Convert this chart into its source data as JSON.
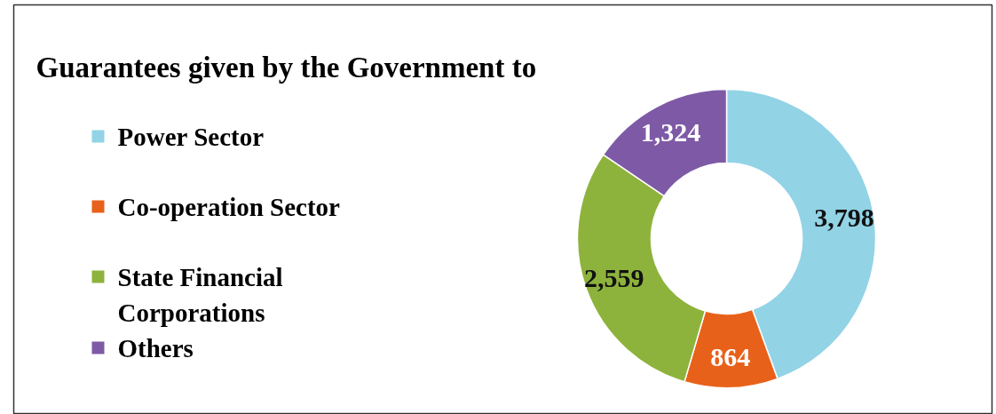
{
  "chart_data": {
    "type": "donut",
    "title": "Guarantees given by the Government to",
    "categories": [
      "Power Sector",
      "Co-operation Sector",
      "State Financial Corporations",
      "Others"
    ],
    "values": [
      3798,
      864,
      2559,
      1324
    ],
    "colors": [
      "#92d3e6",
      "#e8611a",
      "#8db33c",
      "#7e5aa6"
    ],
    "value_labels": [
      "3,798",
      "864",
      "2,559",
      "1,324"
    ],
    "legend": "left"
  }
}
